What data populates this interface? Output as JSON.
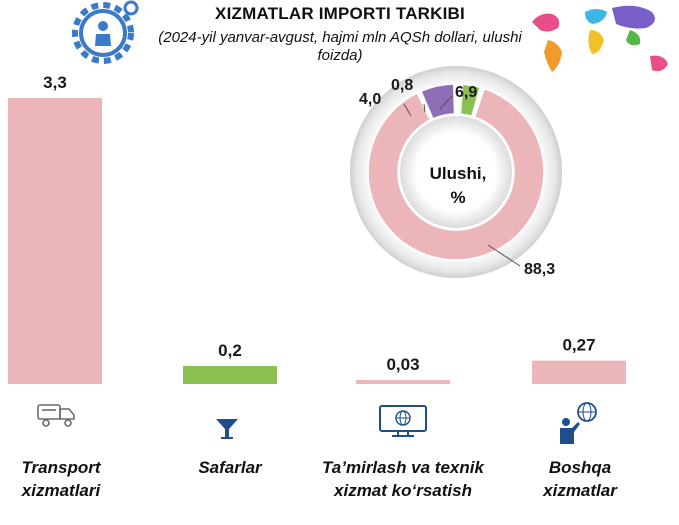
{
  "title": "XIZMATLAR IMPORTI TARKIBI",
  "subtitle": "(2024-yil yanvar-avgust, hajmi mln AQSh dollari, ulushi foizda)",
  "icons": {
    "header": "gear-person-icon",
    "map": "world-map-icon",
    "categories": [
      "truck-icon",
      "cocktail-glass-icon",
      "monitor-globe-icon",
      "person-globe-icon"
    ]
  },
  "chart_data": [
    {
      "type": "bar",
      "categories": [
        "Transport xizmatlari",
        "Safarlar",
        "Ta’mirlash va texnik xizmat ko‘rsatish",
        "Boshqa xizmatlar"
      ],
      "values": [
        3.3,
        0.2,
        0.03,
        0.27
      ],
      "value_labels": [
        "3,3",
        "0,2",
        "0,03",
        "0,27"
      ],
      "colors": [
        "#EBB5B9",
        "#8CC152",
        "#EBB5B9",
        "#EBB5B9"
      ]
    },
    {
      "type": "pie",
      "center_label": "Ulushi, %",
      "center_lines": [
        "Ulushi,",
        "%"
      ],
      "slices": [
        {
          "value": 88.3,
          "label": "88,3",
          "color": "#EBB5B9"
        },
        {
          "value": 4.0,
          "label": "4,0",
          "color": "#8CC152"
        },
        {
          "value": 0.8,
          "label": "0,8",
          "color": "#EBB5B9"
        },
        {
          "value": 6.9,
          "label": "6,9",
          "color": "#8E6FB5"
        }
      ]
    }
  ]
}
